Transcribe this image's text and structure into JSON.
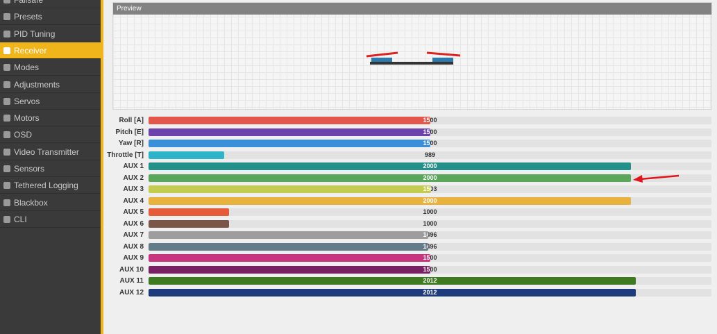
{
  "sidebar": {
    "items": [
      "Failsafe",
      "Presets",
      "PID Tuning",
      "Receiver",
      "Modes",
      "Adjustments",
      "Servos",
      "Motors",
      "OSD",
      "Video Transmitter",
      "Sensors",
      "Tethered Logging",
      "Blackbox",
      "CLI"
    ],
    "active": 3
  },
  "preview": {
    "title": "Preview"
  },
  "channels": {
    "xlim": [
      800,
      2200
    ],
    "names": [
      "Roll [A]",
      "Pitch [E]",
      "Yaw [R]",
      "Throttle [T]",
      "AUX 1",
      "AUX 2",
      "AUX 3",
      "AUX 4",
      "AUX 5",
      "AUX 6",
      "AUX 7",
      "AUX 8",
      "AUX 9",
      "AUX 10",
      "AUX 11",
      "AUX 12"
    ],
    "values": [
      1500,
      1500,
      1500,
      989,
      2000,
      2000,
      1503,
      2000,
      1000,
      1000,
      1496,
      1496,
      1500,
      1500,
      2012,
      2012
    ],
    "colors": [
      "#e2564b",
      "#6d42ad",
      "#3b8fd9",
      "#2eb4c9",
      "#23918a",
      "#5aa65b",
      "#c4cc50",
      "#e8b23d",
      "#e55b3a",
      "#7a5548",
      "#9d9d9d",
      "#627c8a",
      "#c7357f",
      "#7a1f63",
      "#3e7a1f",
      "#1e3b7b"
    ]
  }
}
